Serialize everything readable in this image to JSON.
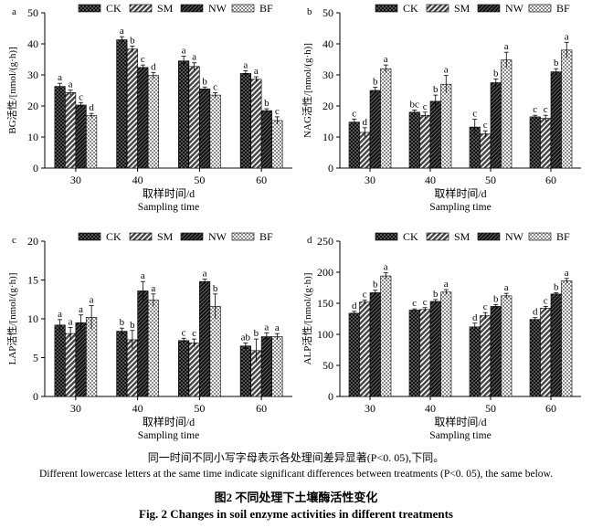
{
  "legend": [
    "CK",
    "SM",
    "NW",
    "BF"
  ],
  "categories": [
    "30",
    "40",
    "50",
    "60"
  ],
  "xlabel_zh": "取样时间/d",
  "xlabel_en": "Sampling time",
  "chart_data": [
    {
      "type": "bar",
      "panel": "a",
      "ylabel": "BG活性/[nmol/(g·h)]",
      "ylim": [
        0,
        50
      ],
      "yticks": [
        0,
        10,
        20,
        30,
        40,
        50
      ],
      "categories": [
        "30",
        "40",
        "50",
        "60"
      ],
      "legend_position": "top",
      "series": [
        {
          "name": "CK",
          "values": [
            26.3,
            41.3,
            34.5,
            30.5
          ],
          "errors": [
            1.0,
            1.0,
            1.5,
            0.8
          ],
          "letters": [
            "a",
            "a",
            "a",
            "a"
          ]
        },
        {
          "name": "SM",
          "values": [
            24.3,
            38.3,
            32.7,
            28.6
          ],
          "errors": [
            0.8,
            1.0,
            1.2,
            0.8
          ],
          "letters": [
            "a",
            "b",
            "a",
            "a"
          ]
        },
        {
          "name": "NW",
          "values": [
            20.3,
            32.4,
            25.5,
            18.5
          ],
          "errors": [
            0.8,
            0.8,
            0.6,
            0.6
          ],
          "letters": [
            "c",
            "c",
            "b",
            "b"
          ]
        },
        {
          "name": "BF",
          "values": [
            16.9,
            29.8,
            23.5,
            15.3
          ],
          "errors": [
            0.7,
            1.0,
            0.8,
            1.2
          ],
          "letters": [
            "d",
            "d",
            "c",
            "c"
          ]
        }
      ]
    },
    {
      "type": "bar",
      "panel": "b",
      "ylabel": "NAG活性/[nmol/(g·h)]",
      "ylim": [
        0,
        50
      ],
      "yticks": [
        0,
        10,
        20,
        30,
        40,
        50
      ],
      "categories": [
        "30",
        "40",
        "50",
        "60"
      ],
      "legend_position": "top",
      "series": [
        {
          "name": "CK",
          "values": [
            14.8,
            18.0,
            13.2,
            16.5
          ],
          "errors": [
            1.0,
            0.7,
            2.5,
            0.5
          ],
          "letters": [
            "c",
            "bc",
            "c",
            "c"
          ]
        },
        {
          "name": "SM",
          "values": [
            11.5,
            17.0,
            11.0,
            16.0
          ],
          "errors": [
            1.5,
            1.0,
            1.0,
            1.0
          ],
          "letters": [
            "d",
            "c",
            "c",
            "c"
          ]
        },
        {
          "name": "NW",
          "values": [
            25.0,
            21.5,
            27.5,
            31.0
          ],
          "errors": [
            1.0,
            2.0,
            1.2,
            1.0
          ],
          "letters": [
            "b",
            "b",
            "b",
            "b"
          ]
        },
        {
          "name": "BF",
          "values": [
            32.0,
            27.0,
            34.8,
            38.0
          ],
          "errors": [
            1.2,
            2.8,
            2.5,
            2.5
          ],
          "letters": [
            "a",
            "a",
            "a",
            "a"
          ]
        }
      ]
    },
    {
      "type": "bar",
      "panel": "c",
      "ylabel": "LAP活性/[nmol/(g·h)]",
      "ylim": [
        0,
        20
      ],
      "yticks": [
        0,
        5,
        10,
        15,
        20
      ],
      "categories": [
        "30",
        "40",
        "50",
        "60"
      ],
      "legend_position": "top",
      "series": [
        {
          "name": "CK",
          "values": [
            9.2,
            8.4,
            7.2,
            6.5
          ],
          "errors": [
            0.7,
            0.4,
            0.3,
            0.4
          ],
          "letters": [
            "a",
            "b",
            "c",
            "ab"
          ]
        },
        {
          "name": "SM",
          "values": [
            8.1,
            7.3,
            6.9,
            5.9
          ],
          "errors": [
            0.8,
            1.2,
            0.5,
            1.5
          ],
          "letters": [
            "a",
            "b",
            "c",
            "b"
          ]
        },
        {
          "name": "NW",
          "values": [
            9.5,
            13.6,
            14.8,
            7.7
          ],
          "errors": [
            1.0,
            1.2,
            0.3,
            0.5
          ],
          "letters": [
            "a",
            "a",
            "a",
            "a"
          ]
        },
        {
          "name": "BF",
          "values": [
            10.2,
            12.4,
            11.6,
            7.7
          ],
          "errors": [
            1.5,
            0.8,
            1.6,
            0.4
          ],
          "letters": [
            "a",
            "a",
            "b",
            "a"
          ]
        }
      ]
    },
    {
      "type": "bar",
      "panel": "d",
      "ylabel": "ALP活性/[nmol/(g·h)]",
      "ylim": [
        0,
        250
      ],
      "yticks": [
        0,
        50,
        100,
        150,
        200,
        250
      ],
      "categories": [
        "30",
        "40",
        "50",
        "60"
      ],
      "legend_position": "top",
      "series": [
        {
          "name": "CK",
          "values": [
            134,
            139,
            112,
            124
          ],
          "errors": [
            3,
            2,
            6,
            3
          ],
          "letters": [
            "d",
            "c",
            "d",
            "d"
          ]
        },
        {
          "name": "SM",
          "values": [
            152,
            140,
            130,
            142
          ],
          "errors": [
            3,
            3,
            5,
            3
          ],
          "letters": [
            "c",
            "c",
            "c",
            "c"
          ]
        },
        {
          "name": "NW",
          "values": [
            167,
            153,
            145,
            165
          ],
          "errors": [
            4,
            3,
            3,
            2
          ],
          "letters": [
            "b",
            "b",
            "b",
            "b"
          ]
        },
        {
          "name": "BF",
          "values": [
            194,
            168,
            162,
            186
          ],
          "errors": [
            5,
            4,
            4,
            4
          ],
          "letters": [
            "a",
            "a",
            "a",
            "a"
          ]
        }
      ]
    }
  ],
  "captions": {
    "zh": "同一时间不同小写字母表示各处理间差异显著(P<0. 05),下同。",
    "en": "Different lowercase letters at the same time indicate significant differences between treatments (P<0. 05), the same below.",
    "fig_zh": "图2   不同处理下土壤酶活性变化",
    "fig_en": "Fig. 2   Changes in soil enzyme activities in different treatments"
  }
}
